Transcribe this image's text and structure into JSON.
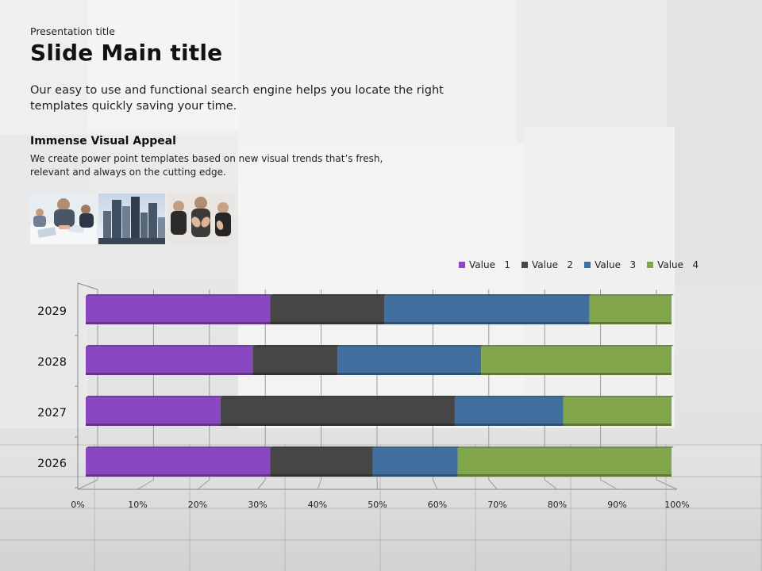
{
  "slide": {
    "presentation_title": "Presentation title",
    "main_title": "Slide Main title",
    "intro": "Our easy to use and functional search engine helps you locate the right templates quickly saving your time.",
    "section_heading": "Immense Visual Appeal",
    "section_body": "We create power point templates based on new visual trends that’s fresh, relevant and always on the cutting edge."
  },
  "chart_data": {
    "type": "bar",
    "orientation": "horizontal",
    "stacked": "percent",
    "categories": [
      "2029",
      "2028",
      "2027",
      "2026"
    ],
    "series": [
      {
        "name": "Value   1",
        "color": "#8a47c2",
        "values": [
          31.5,
          28.5,
          23,
          31.5
        ]
      },
      {
        "name": "Value   2",
        "color": "#464646",
        "values": [
          19.5,
          14.5,
          40,
          17.5
        ]
      },
      {
        "name": "Value   3",
        "color": "#4170a0",
        "values": [
          35,
          24.5,
          18.5,
          14.5
        ]
      },
      {
        "name": "Value   4",
        "color": "#82a64c",
        "values": [
          14,
          32.5,
          18.5,
          36.5
        ]
      }
    ],
    "xticks": [
      "0%",
      "10%",
      "20%",
      "30%",
      "40%",
      "50%",
      "60%",
      "70%",
      "80%",
      "90%",
      "100%"
    ],
    "xlim": [
      0,
      100
    ],
    "legend": "top-right",
    "grid": true
  }
}
